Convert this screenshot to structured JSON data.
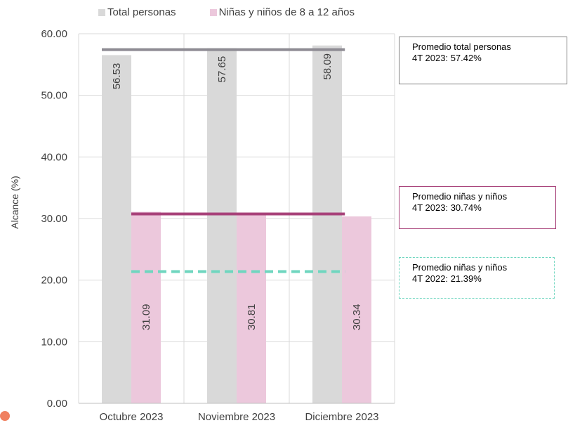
{
  "chart_data": {
    "type": "bar",
    "categories": [
      "Octubre 2023",
      "Noviembre 2023",
      "Diciembre 2023"
    ],
    "series": [
      {
        "name": "Total personas",
        "values": [
          56.53,
          57.65,
          58.09
        ],
        "value_labels": [
          "56.53",
          "57.65",
          "58.09"
        ],
        "color": "#d9d9d9"
      },
      {
        "name": "Niñas y niños de 8 a 12 años",
        "values": [
          31.09,
          30.81,
          30.34
        ],
        "value_labels": [
          "31.09",
          "30.81",
          "30.34"
        ],
        "color": "#ecc8dc"
      }
    ],
    "ylabel": "Alcance (%)",
    "ylim": [
      0,
      60
    ],
    "yticks": [
      "0.00",
      "10.00",
      "20.00",
      "30.00",
      "40.00",
      "50.00",
      "60.00"
    ],
    "grid": true,
    "legend_position": "top",
    "reference_lines": [
      {
        "value": 57.42,
        "color": "#8e8b93",
        "style": "solid"
      },
      {
        "value": 30.74,
        "color": "#a8427a",
        "style": "solid"
      },
      {
        "value": 21.39,
        "color": "#6fd6bf",
        "style": "dashed"
      }
    ],
    "annotations": [
      {
        "id": "total",
        "lines": [
          "Promedio total personas",
          "4T 2023: 57.42%"
        ]
      },
      {
        "id": "ninos2023",
        "lines": [
          "Promedio niñas y niños",
          "4T 2023: 30.74%"
        ]
      },
      {
        "id": "ninos2022",
        "lines": [
          "Promedio niñas y niños",
          "4T 2022: 21.39%"
        ]
      }
    ]
  }
}
